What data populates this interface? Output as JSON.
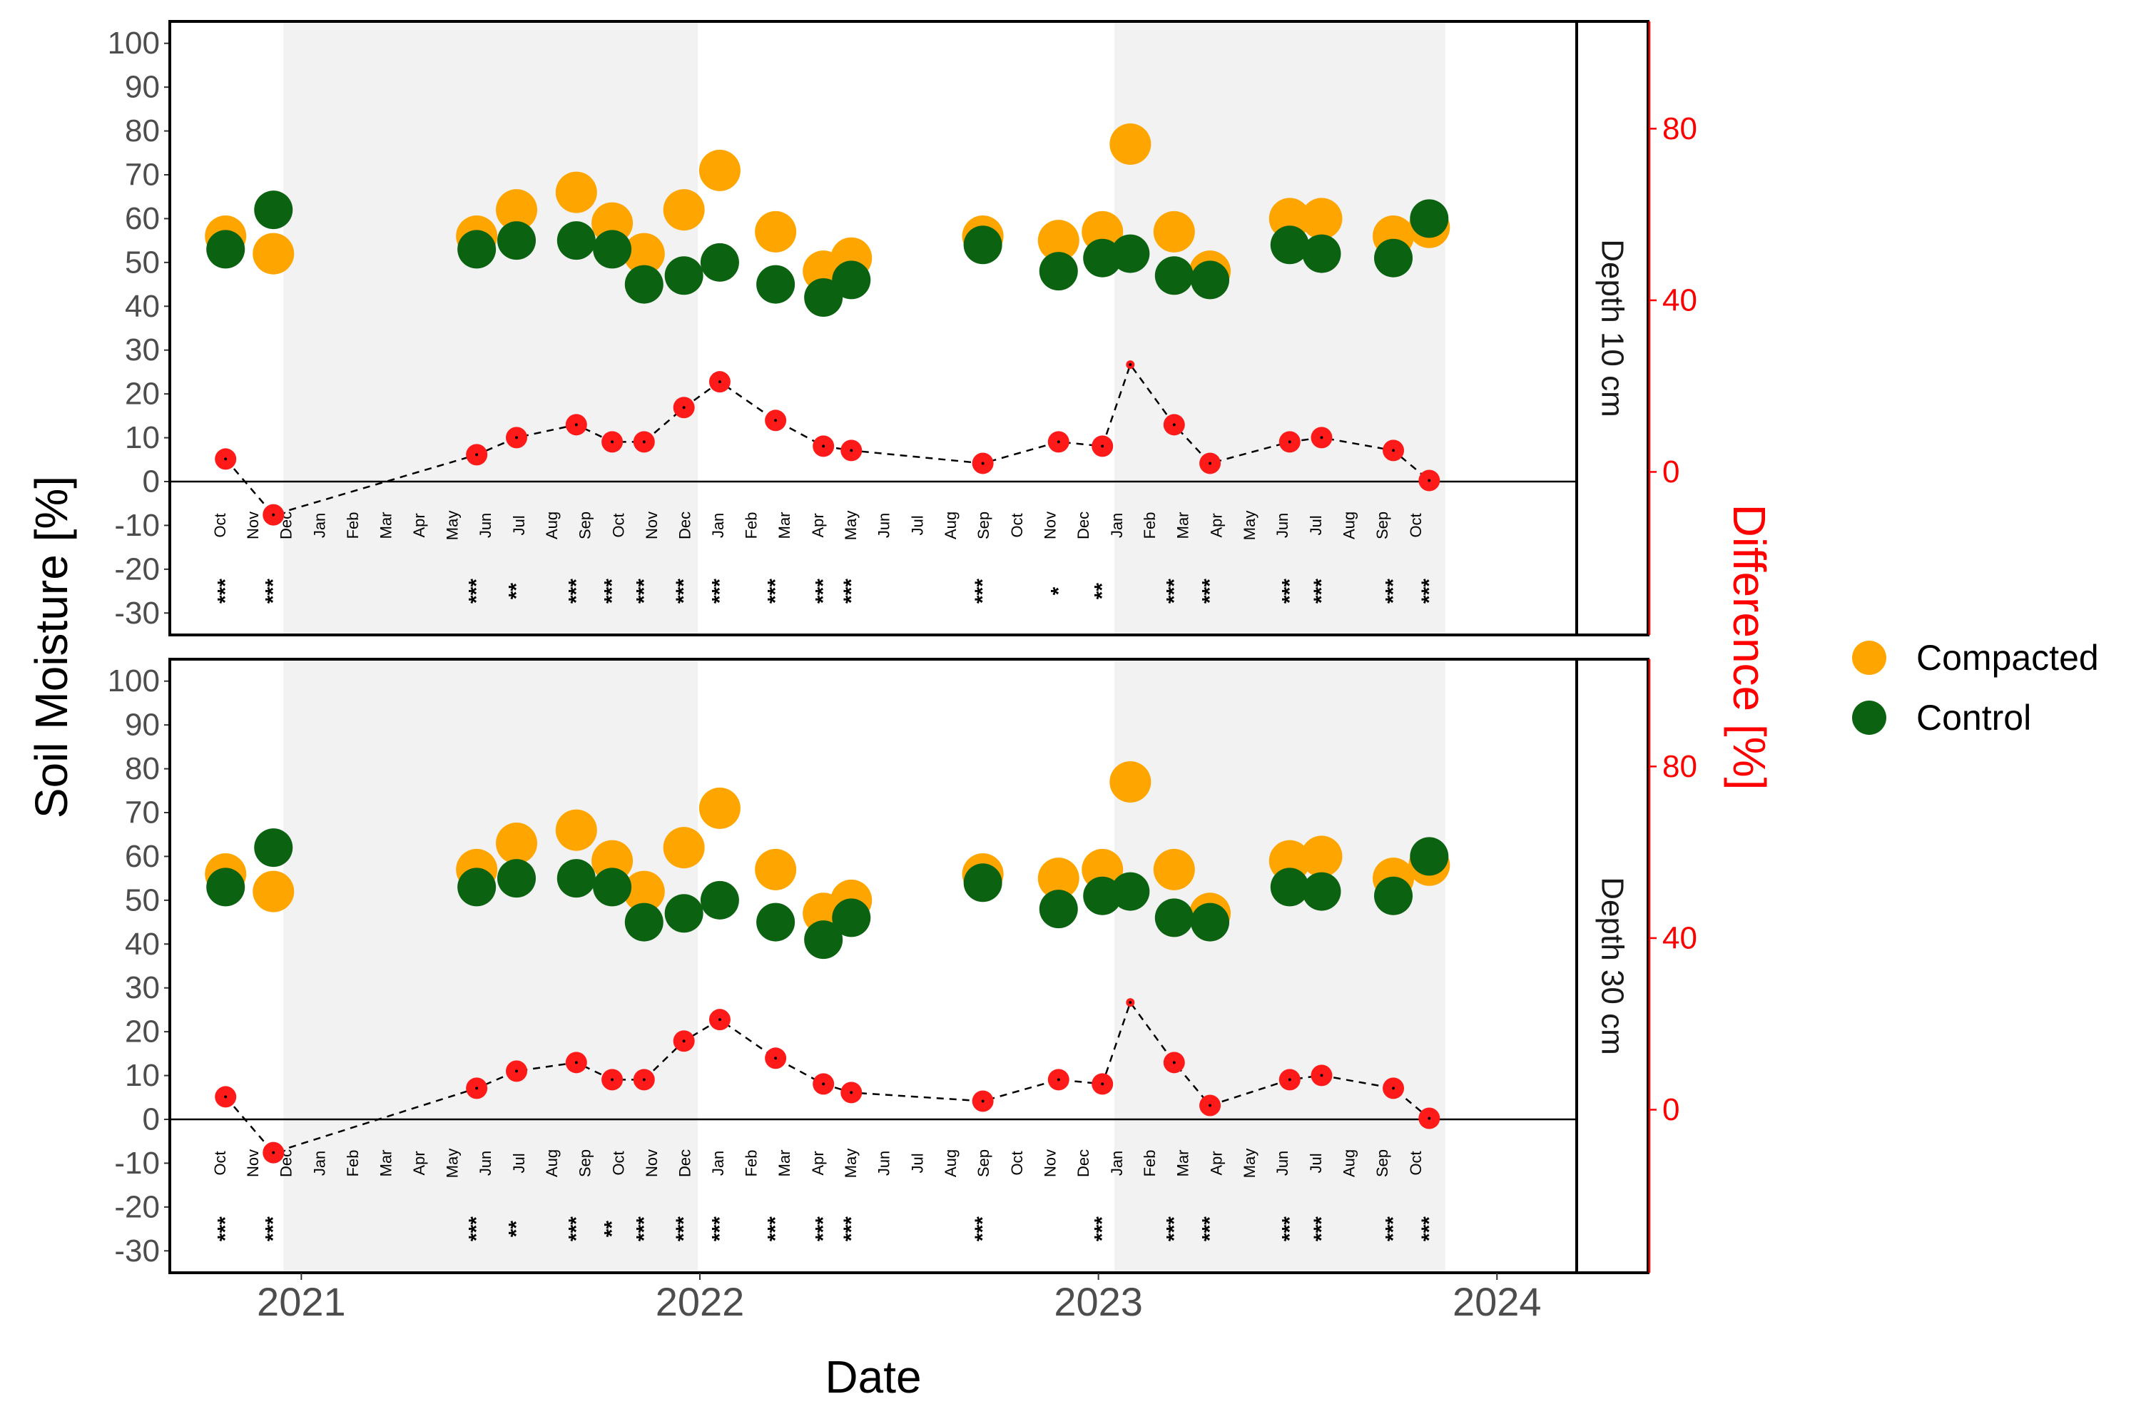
{
  "chart_data": {
    "type": "scatter",
    "xlabel": "Date",
    "ylabel": "Soil Moisture [%]",
    "y2label": "Difference [%]",
    "ylim": [
      -35,
      105
    ],
    "y2lim": [
      -38,
      105
    ],
    "xlim": [
      2020.67,
      2024.2
    ],
    "y_ticks": [
      "100",
      "90",
      "80",
      "70",
      "60",
      "50",
      "40",
      "30",
      "20",
      "10",
      "0",
      "-10",
      "-20",
      "-30"
    ],
    "y2_ticks": [
      "80",
      "40",
      "0"
    ],
    "x_ticks": [
      "2021",
      "2022",
      "2023",
      "2024"
    ],
    "shaded_years": [
      [
        2020.955,
        2021.995
      ],
      [
        2023.04,
        2023.87
      ]
    ],
    "colors": {
      "compacted": "#FFA500",
      "control": "#0B6311",
      "difference": "#FF1A1A",
      "axis2": "#FF0000",
      "shade": "#F2F2F2"
    },
    "legend": {
      "position": "right",
      "items": [
        {
          "label": "Compacted",
          "color": "#FFA500"
        },
        {
          "label": "Control",
          "color": "#0B6311"
        }
      ]
    },
    "month_labels": [
      {
        "t": 2020.796,
        "label": "Oct"
      },
      {
        "t": 2020.879,
        "label": "Nov"
      },
      {
        "t": 2020.962,
        "label": "Dec"
      },
      {
        "t": 2021.046,
        "label": "Jan"
      },
      {
        "t": 2021.129,
        "label": "Feb"
      },
      {
        "t": 2021.212,
        "label": "Mar"
      },
      {
        "t": 2021.296,
        "label": "Apr"
      },
      {
        "t": 2021.379,
        "label": "May"
      },
      {
        "t": 2021.462,
        "label": "Jun"
      },
      {
        "t": 2021.546,
        "label": "Jul"
      },
      {
        "t": 2021.629,
        "label": "Aug"
      },
      {
        "t": 2021.712,
        "label": "Sep"
      },
      {
        "t": 2021.796,
        "label": "Oct"
      },
      {
        "t": 2021.879,
        "label": "Nov"
      },
      {
        "t": 2021.962,
        "label": "Dec"
      },
      {
        "t": 2022.046,
        "label": "Jan"
      },
      {
        "t": 2022.129,
        "label": "Feb"
      },
      {
        "t": 2022.212,
        "label": "Mar"
      },
      {
        "t": 2022.296,
        "label": "Apr"
      },
      {
        "t": 2022.379,
        "label": "May"
      },
      {
        "t": 2022.462,
        "label": "Jun"
      },
      {
        "t": 2022.546,
        "label": "Jul"
      },
      {
        "t": 2022.629,
        "label": "Aug"
      },
      {
        "t": 2022.712,
        "label": "Sep"
      },
      {
        "t": 2022.796,
        "label": "Oct"
      },
      {
        "t": 2022.879,
        "label": "Nov"
      },
      {
        "t": 2022.962,
        "label": "Dec"
      },
      {
        "t": 2023.046,
        "label": "Jan"
      },
      {
        "t": 2023.129,
        "label": "Feb"
      },
      {
        "t": 2023.212,
        "label": "Mar"
      },
      {
        "t": 2023.296,
        "label": "Apr"
      },
      {
        "t": 2023.379,
        "label": "May"
      },
      {
        "t": 2023.462,
        "label": "Jun"
      },
      {
        "t": 2023.546,
        "label": "Jul"
      },
      {
        "t": 2023.629,
        "label": "Aug"
      },
      {
        "t": 2023.712,
        "label": "Sep"
      },
      {
        "t": 2023.796,
        "label": "Oct"
      }
    ],
    "panels": [
      {
        "strip": "Depth 10 cm",
        "points": [
          {
            "t": 2020.81,
            "compacted": 56,
            "control": 53,
            "diff": 3,
            "sig": "***"
          },
          {
            "t": 2020.93,
            "compacted": 52,
            "control": 62,
            "diff": -10,
            "sig": "***"
          },
          {
            "t": 2021.44,
            "compacted": 56,
            "control": 53,
            "diff": 4,
            "sig": "***"
          },
          {
            "t": 2021.54,
            "compacted": 62,
            "control": 55,
            "diff": 8,
            "sig": "**"
          },
          {
            "t": 2021.69,
            "compacted": 66,
            "control": 55,
            "diff": 11,
            "sig": "***"
          },
          {
            "t": 2021.78,
            "compacted": 59,
            "control": 53,
            "diff": 7,
            "sig": "***"
          },
          {
            "t": 2021.86,
            "compacted": 52,
            "control": 45,
            "diff": 7,
            "sig": "***"
          },
          {
            "t": 2021.96,
            "compacted": 62,
            "control": 47,
            "diff": 15,
            "sig": "***"
          },
          {
            "t": 2022.05,
            "compacted": 71,
            "control": 50,
            "diff": 21,
            "sig": "***"
          },
          {
            "t": 2022.19,
            "compacted": 57,
            "control": 45,
            "diff": 12,
            "sig": "***"
          },
          {
            "t": 2022.31,
            "compacted": 48,
            "control": 42,
            "diff": 6,
            "sig": "***"
          },
          {
            "t": 2022.38,
            "compacted": 51,
            "control": 46,
            "diff": 5,
            "sig": "***"
          },
          {
            "t": 2022.71,
            "compacted": 56,
            "control": 54,
            "diff": 2,
            "sig": "***"
          },
          {
            "t": 2022.9,
            "compacted": 55,
            "control": 48,
            "diff": 7,
            "sig": "*"
          },
          {
            "t": 2023.01,
            "compacted": 57,
            "control": 51,
            "diff": 6,
            "sig": "**"
          },
          {
            "t": 2023.08,
            "compacted": 77,
            "control": 52,
            "diff": 25,
            "sig": ""
          },
          {
            "t": 2023.19,
            "compacted": 57,
            "control": 47,
            "diff": 11,
            "sig": "***"
          },
          {
            "t": 2023.28,
            "compacted": 48,
            "control": 46,
            "diff": 2,
            "sig": "***"
          },
          {
            "t": 2023.48,
            "compacted": 60,
            "control": 54,
            "diff": 7,
            "sig": "***"
          },
          {
            "t": 2023.56,
            "compacted": 60,
            "control": 52,
            "diff": 8,
            "sig": "***"
          },
          {
            "t": 2023.74,
            "compacted": 56,
            "control": 51,
            "diff": 5,
            "sig": "***"
          },
          {
            "t": 2023.83,
            "compacted": 58,
            "control": 60,
            "diff": -2,
            "sig": "***"
          }
        ]
      },
      {
        "strip": "Depth 30 cm",
        "points": [
          {
            "t": 2020.81,
            "compacted": 56,
            "control": 53,
            "diff": 3,
            "sig": "***"
          },
          {
            "t": 2020.93,
            "compacted": 52,
            "control": 62,
            "diff": -10,
            "sig": "***"
          },
          {
            "t": 2021.44,
            "compacted": 57,
            "control": 53,
            "diff": 5,
            "sig": "***"
          },
          {
            "t": 2021.54,
            "compacted": 63,
            "control": 55,
            "diff": 9,
            "sig": "**"
          },
          {
            "t": 2021.69,
            "compacted": 66,
            "control": 55,
            "diff": 11,
            "sig": "***"
          },
          {
            "t": 2021.78,
            "compacted": 59,
            "control": 53,
            "diff": 7,
            "sig": "**"
          },
          {
            "t": 2021.86,
            "compacted": 52,
            "control": 45,
            "diff": 7,
            "sig": "***"
          },
          {
            "t": 2021.96,
            "compacted": 62,
            "control": 47,
            "diff": 16,
            "sig": "***"
          },
          {
            "t": 2022.05,
            "compacted": 71,
            "control": 50,
            "diff": 21,
            "sig": "***"
          },
          {
            "t": 2022.19,
            "compacted": 57,
            "control": 45,
            "diff": 12,
            "sig": "***"
          },
          {
            "t": 2022.31,
            "compacted": 47,
            "control": 41,
            "diff": 6,
            "sig": "***"
          },
          {
            "t": 2022.38,
            "compacted": 50,
            "control": 46,
            "diff": 4,
            "sig": "***"
          },
          {
            "t": 2022.71,
            "compacted": 56,
            "control": 54,
            "diff": 2,
            "sig": "***"
          },
          {
            "t": 2022.9,
            "compacted": 55,
            "control": 48,
            "diff": 7,
            "sig": ""
          },
          {
            "t": 2023.01,
            "compacted": 57,
            "control": 51,
            "diff": 6,
            "sig": "***"
          },
          {
            "t": 2023.08,
            "compacted": 77,
            "control": 52,
            "diff": 25,
            "sig": ""
          },
          {
            "t": 2023.19,
            "compacted": 57,
            "control": 46,
            "diff": 11,
            "sig": "***"
          },
          {
            "t": 2023.28,
            "compacted": 47,
            "control": 45,
            "diff": 1,
            "sig": "***"
          },
          {
            "t": 2023.48,
            "compacted": 59,
            "control": 53,
            "diff": 7,
            "sig": "***"
          },
          {
            "t": 2023.56,
            "compacted": 60,
            "control": 52,
            "diff": 8,
            "sig": "***"
          },
          {
            "t": 2023.74,
            "compacted": 55,
            "control": 51,
            "diff": 5,
            "sig": "***"
          },
          {
            "t": 2023.83,
            "compacted": 58,
            "control": 60,
            "diff": -2,
            "sig": "***"
          }
        ]
      }
    ]
  }
}
